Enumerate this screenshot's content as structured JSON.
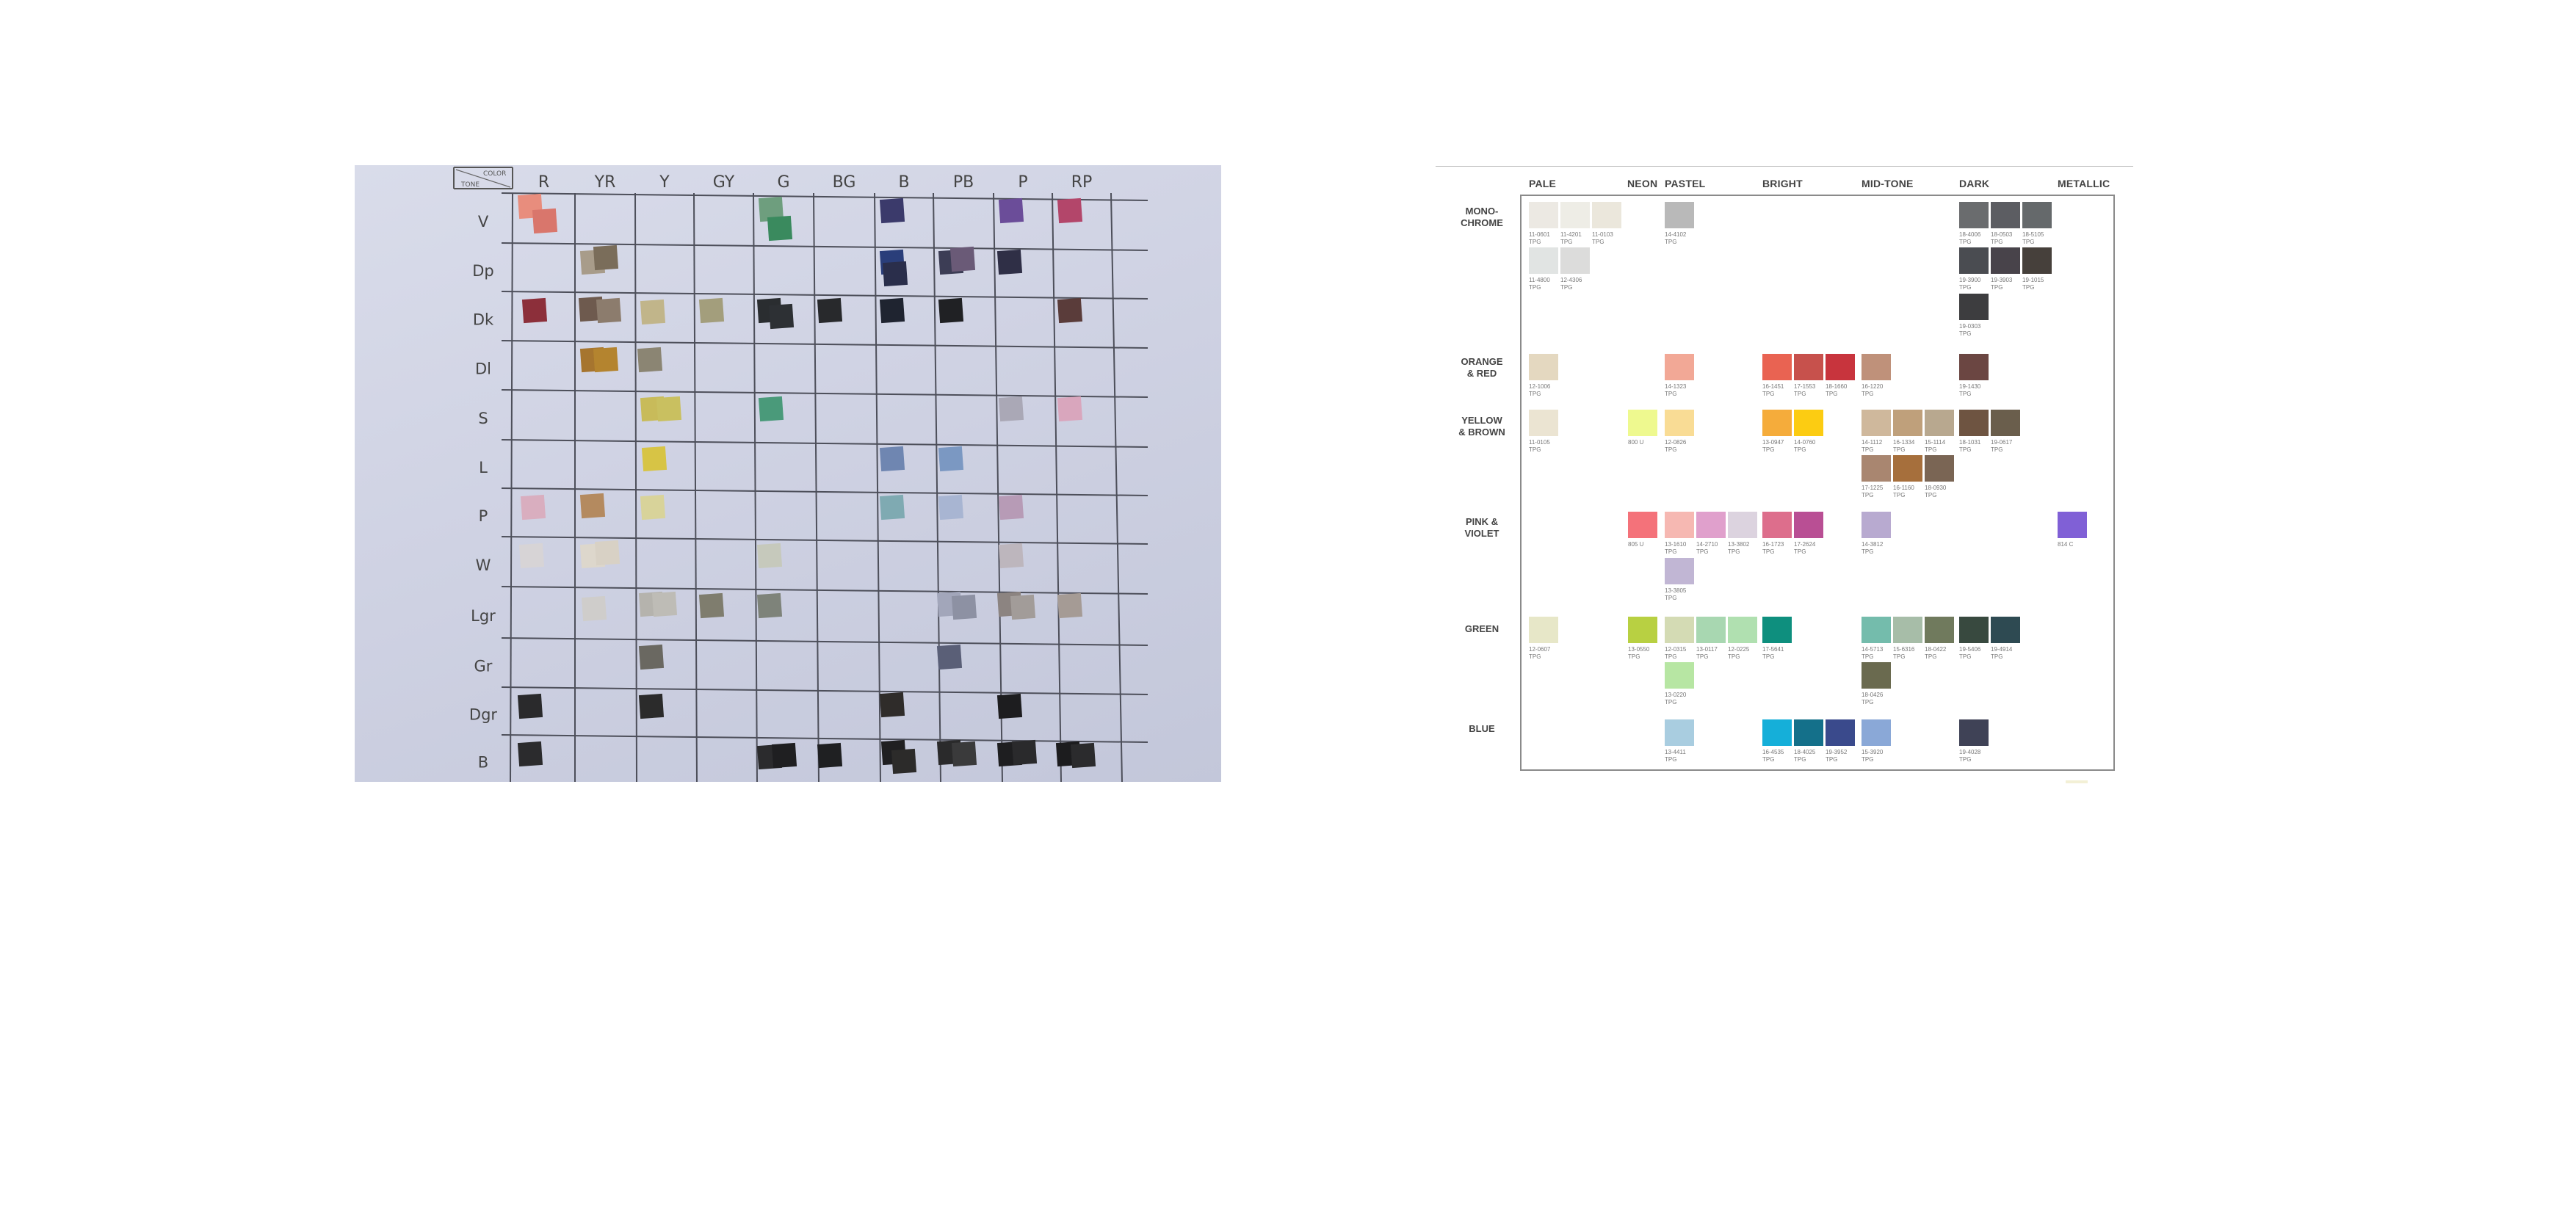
{
  "photo": {
    "header_corner": [
      "COLOR",
      "TONE"
    ],
    "columns": [
      "R",
      "YR",
      "Y",
      "GY",
      "G",
      "BG",
      "B",
      "PB",
      "P",
      "RP"
    ],
    "rows": [
      "V",
      "Dp",
      "Dk",
      "Dl",
      "S",
      "L",
      "P",
      "W",
      "Lgr",
      "Gr",
      "Dgr",
      "B"
    ]
  },
  "chart": {
    "columns": {
      "pale": "PALE",
      "neon": "NEON",
      "pastel": "PASTEL",
      "bright": "BRIGHT",
      "midtone": "MID-TONE",
      "dark": "DARK",
      "metallic": "METALLIC"
    },
    "rows": {
      "monochrome": [
        "MONO-",
        "CHROME"
      ],
      "orange_red": [
        "ORANGE",
        "& RED"
      ],
      "yellow_brown": [
        "YELLOW",
        "& BROWN"
      ],
      "pink_violet": [
        "PINK &",
        "VIOLET"
      ],
      "green": [
        "GREEN"
      ],
      "blue": [
        "BLUE"
      ]
    },
    "swatches": [
      {
        "color": "#ece9e3",
        "code": "11-0601",
        "sub": "TPG"
      },
      {
        "color": "#eeede6",
        "code": "11-4201",
        "sub": "TPG"
      },
      {
        "color": "#ebe7dc",
        "code": "11-0103",
        "sub": "TPG"
      },
      {
        "color": "#b9b9b9",
        "code": "14-4102",
        "sub": "TPG"
      },
      {
        "color": "#6a6c6e",
        "code": "18-4006",
        "sub": "TPG"
      },
      {
        "color": "#5c5d62",
        "code": "18-0503",
        "sub": "TPG"
      },
      {
        "color": "#65696b",
        "code": "18-5105",
        "sub": "TPG"
      },
      {
        "color": "#e1e4e3",
        "code": "11-4800",
        "sub": "TPG"
      },
      {
        "color": "#dcdcdb",
        "code": "12-4306",
        "sub": "TPG"
      },
      {
        "color": "#4a4c51",
        "code": "19-3900",
        "sub": "TPG"
      },
      {
        "color": "#48434a",
        "code": "19-3903",
        "sub": "TPG"
      },
      {
        "color": "#46403b",
        "code": "19-1015",
        "sub": "TPG"
      },
      {
        "color": "#3d3d3f",
        "code": "19-0303",
        "sub": "TPG"
      },
      {
        "color": "#e4d8c0",
        "code": "12-1006",
        "sub": "TPG"
      },
      {
        "color": "#f2a896",
        "code": "14-1323",
        "sub": "TPG"
      },
      {
        "color": "#e96352",
        "code": "16-1451",
        "sub": "TPG"
      },
      {
        "color": "#c7514c",
        "code": "17-1553",
        "sub": "TPG"
      },
      {
        "color": "#c8343d",
        "code": "18-1660",
        "sub": "TPG"
      },
      {
        "color": "#bf917a",
        "code": "16-1220",
        "sub": "TPG"
      },
      {
        "color": "#6b4642",
        "code": "19-1430",
        "sub": "TPG"
      },
      {
        "color": "#ebe4d2",
        "code": "11-0105",
        "sub": "TPG"
      },
      {
        "color": "#eef98f",
        "code": "800 U",
        "sub": ""
      },
      {
        "color": "#f9dc95",
        "code": "12-0826",
        "sub": "TPG"
      },
      {
        "color": "#f5ac3b",
        "code": "13-0947",
        "sub": "TPG"
      },
      {
        "color": "#fccc12",
        "code": "14-0760",
        "sub": "TPG"
      },
      {
        "color": "#cfb89c",
        "code": "14-1112",
        "sub": "TPG"
      },
      {
        "color": "#bfa07b",
        "code": "16-1334",
        "sub": "TPG"
      },
      {
        "color": "#b8a88f",
        "code": "15-1114",
        "sub": "TPG"
      },
      {
        "color": "#6e5441",
        "code": "18-1031",
        "sub": "TPG"
      },
      {
        "color": "#6a5e4c",
        "code": "19-0617",
        "sub": "TPG"
      },
      {
        "color": "#a98670",
        "code": "17-1225",
        "sub": "TPG"
      },
      {
        "color": "#a66f3c",
        "code": "16-1160",
        "sub": "TPG"
      },
      {
        "color": "#7a6554",
        "code": "18-0930",
        "sub": "TPG"
      },
      {
        "color": "#f4727a",
        "code": "805 U",
        "sub": ""
      },
      {
        "color": "#f6b8b2",
        "code": "13-1610",
        "sub": "TPG"
      },
      {
        "color": "#e0a0cc",
        "code": "14-2710",
        "sub": "TPG"
      },
      {
        "color": "#dcd3df",
        "code": "13-3802",
        "sub": "TPG"
      },
      {
        "color": "#dd6e8c",
        "code": "16-1723",
        "sub": "TPG"
      },
      {
        "color": "#b94f94",
        "code": "17-2624",
        "sub": "TPG"
      },
      {
        "color": "#b8aad0",
        "code": "14-3812",
        "sub": "TPG"
      },
      {
        "color": "#8060d6",
        "code": "814 C",
        "sub": ""
      },
      {
        "color": "#c1b6d4",
        "code": "13-3805",
        "sub": "TPG"
      },
      {
        "color": "#e7e7c8",
        "code": "12-0607",
        "sub": "TPG"
      },
      {
        "color": "#b8d042",
        "code": "13-0550",
        "sub": "TPG"
      },
      {
        "color": "#d4dbb4",
        "code": "12-0315",
        "sub": "TPG"
      },
      {
        "color": "#a8d7b1",
        "code": "13-0117",
        "sub": "TPG"
      },
      {
        "color": "#b0e0b0",
        "code": "12-0225",
        "sub": "TPG"
      },
      {
        "color": "#0e8f7e",
        "code": "17-5641",
        "sub": "TPG"
      },
      {
        "color": "#74bcac",
        "code": "14-5713",
        "sub": "TPG"
      },
      {
        "color": "#a7bda8",
        "code": "15-6316",
        "sub": "TPG"
      },
      {
        "color": "#707a5d",
        "code": "18-0422",
        "sub": "TPG"
      },
      {
        "color": "#38493f",
        "code": "19-5406",
        "sub": "TPG"
      },
      {
        "color": "#2e4a52",
        "code": "19-4914",
        "sub": "TPG"
      },
      {
        "color": "#b7e6a3",
        "code": "13-0220",
        "sub": "TPG"
      },
      {
        "color": "#6a6a4f",
        "code": "18-0426",
        "sub": "TPG"
      },
      {
        "color": "#a9cde0",
        "code": "13-4411",
        "sub": "TPG"
      },
      {
        "color": "#15afd9",
        "code": "16-4535",
        "sub": "TPG"
      },
      {
        "color": "#14708a",
        "code": "18-4025",
        "sub": "TPG"
      },
      {
        "color": "#3a4a8c",
        "code": "19-3952",
        "sub": "TPG"
      },
      {
        "color": "#8aa8d7",
        "code": "15-3920",
        "sub": "TPG"
      },
      {
        "color": "#3f4256",
        "code": "19-4028",
        "sub": "TPG"
      }
    ]
  }
}
